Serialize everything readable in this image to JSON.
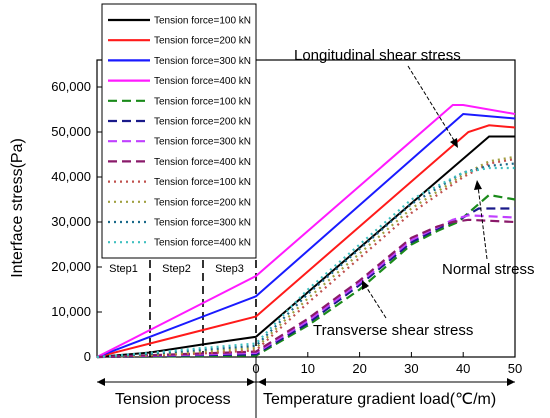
{
  "chart_data": {
    "type": "line",
    "title": "",
    "ylabel": "Interface stress(Pa)",
    "xlabel_tension": "Tension process",
    "xlabel_temperature": "Temperature gradient load(℃/m)",
    "ylim": [
      0,
      66000
    ],
    "x_temperature_range": [
      0,
      50
    ],
    "y_ticks": [
      0,
      10000,
      20000,
      30000,
      40000,
      50000,
      60000
    ],
    "y_tick_labels": [
      "0",
      "10,000",
      "20,000",
      "30,000",
      "40,000",
      "50,000",
      "60,000"
    ],
    "x_ticks": [
      0,
      10,
      20,
      30,
      40,
      50
    ],
    "x_tick_labels": [
      "0",
      "10",
      "20",
      "30",
      "40",
      "50"
    ],
    "steps": [
      "Step1",
      "Step2",
      "Step3"
    ],
    "annotations": {
      "longitudinal": "Longitudinal shear stress",
      "normal": "Normal stress",
      "transverse": "Transverse shear stress"
    },
    "legend_position": "upper-left",
    "grid": false,
    "series": [
      {
        "name": "Tension force=100 kN",
        "group": "Longitudinal shear stress",
        "color": "#000000",
        "dash": "solid",
        "points": [
          [
            -3,
            0
          ],
          [
            -2,
            1000
          ],
          [
            -1,
            2800
          ],
          [
            0,
            4500
          ],
          [
            45,
            49000
          ],
          [
            50,
            49000
          ]
        ]
      },
      {
        "name": "Tension force=200 kN",
        "group": "Longitudinal shear stress",
        "color": "#ff1a1a",
        "dash": "solid",
        "points": [
          [
            -3,
            0
          ],
          [
            -2,
            3000
          ],
          [
            -1,
            6000
          ],
          [
            0,
            9000
          ],
          [
            41,
            50000
          ],
          [
            45,
            51500
          ],
          [
            50,
            51000
          ]
        ]
      },
      {
        "name": "Tension force=300 kN",
        "group": "Longitudinal shear stress",
        "color": "#1a1aff",
        "dash": "solid",
        "points": [
          [
            -3,
            0
          ],
          [
            -2,
            4500
          ],
          [
            -1,
            9000
          ],
          [
            0,
            13500
          ],
          [
            40,
            54000
          ],
          [
            50,
            53000
          ]
        ]
      },
      {
        "name": "Tension force=400 kN",
        "group": "Longitudinal shear stress",
        "color": "#ff1aff",
        "dash": "solid",
        "points": [
          [
            -3,
            0
          ],
          [
            -2,
            6000
          ],
          [
            -1,
            12000
          ],
          [
            0,
            18000
          ],
          [
            38,
            56000
          ],
          [
            40,
            56000
          ],
          [
            50,
            54000
          ]
        ]
      },
      {
        "name": "Tension force=100 kN",
        "group": "Transverse shear stress",
        "color": "#1a8a1a",
        "dash": "longdash",
        "points": [
          [
            -3,
            0
          ],
          [
            -2,
            100
          ],
          [
            -1,
            200
          ],
          [
            0,
            300
          ],
          [
            10,
            7000
          ],
          [
            20,
            15000
          ],
          [
            30,
            25000
          ],
          [
            35,
            28000
          ],
          [
            39,
            30000
          ],
          [
            43,
            34000
          ],
          [
            45,
            36000
          ],
          [
            50,
            35000
          ]
        ]
      },
      {
        "name": "Tension force=200 kN",
        "group": "Transverse shear stress",
        "color": "#1a1a8a",
        "dash": "longdash",
        "points": [
          [
            -3,
            0
          ],
          [
            -2,
            200
          ],
          [
            -1,
            400
          ],
          [
            0,
            600
          ],
          [
            10,
            7500
          ],
          [
            20,
            16000
          ],
          [
            30,
            25500
          ],
          [
            35,
            28500
          ],
          [
            40,
            31000
          ],
          [
            43,
            33000
          ],
          [
            50,
            33000
          ]
        ]
      },
      {
        "name": "Tension force=300 kN",
        "group": "Transverse shear stress",
        "color": "#c040ff",
        "dash": "longdash",
        "points": [
          [
            -3,
            0
          ],
          [
            -2,
            300
          ],
          [
            -1,
            600
          ],
          [
            0,
            900
          ],
          [
            10,
            8000
          ],
          [
            20,
            16500
          ],
          [
            30,
            26000
          ],
          [
            35,
            28800
          ],
          [
            38,
            30500
          ],
          [
            41,
            31500
          ],
          [
            50,
            31000
          ]
        ]
      },
      {
        "name": "Tension force=400 kN",
        "group": "Transverse shear stress",
        "color": "#8a1a6a",
        "dash": "longdash",
        "points": [
          [
            -3,
            0
          ],
          [
            -2,
            400
          ],
          [
            -1,
            800
          ],
          [
            0,
            1200
          ],
          [
            10,
            8500
          ],
          [
            20,
            17000
          ],
          [
            30,
            26500
          ],
          [
            35,
            29000
          ],
          [
            38,
            30000
          ],
          [
            41,
            30500
          ],
          [
            50,
            30000
          ]
        ]
      },
      {
        "name": "Tension force=100 kN",
        "group": "Normal stress",
        "color": "#c0504d",
        "dash": "dot",
        "points": [
          [
            -3,
            0
          ],
          [
            -2,
            300
          ],
          [
            -1,
            800
          ],
          [
            0,
            1500
          ],
          [
            10,
            12000
          ],
          [
            20,
            22000
          ],
          [
            30,
            32000
          ],
          [
            40,
            40000
          ],
          [
            45,
            43000
          ],
          [
            50,
            44000
          ]
        ]
      },
      {
        "name": "Tension force=200 kN",
        "group": "Normal stress",
        "color": "#a0a040",
        "dash": "dot",
        "points": [
          [
            -3,
            0
          ],
          [
            -2,
            500
          ],
          [
            -1,
            1200
          ],
          [
            0,
            2000
          ],
          [
            10,
            13000
          ],
          [
            20,
            23000
          ],
          [
            30,
            33000
          ],
          [
            40,
            40500
          ],
          [
            45,
            43500
          ],
          [
            50,
            44500
          ]
        ]
      },
      {
        "name": "Tension force=300 kN",
        "group": "Normal stress",
        "color": "#1a6a8a",
        "dash": "dot",
        "points": [
          [
            -3,
            0
          ],
          [
            -2,
            700
          ],
          [
            -1,
            1600
          ],
          [
            0,
            2500
          ],
          [
            10,
            14000
          ],
          [
            20,
            24000
          ],
          [
            30,
            34000
          ],
          [
            40,
            41000
          ],
          [
            45,
            42500
          ],
          [
            50,
            43000
          ]
        ]
      },
      {
        "name": "Tension force=400 kN",
        "group": "Normal stress",
        "color": "#40c0c0",
        "dash": "dot",
        "points": [
          [
            -3,
            0
          ],
          [
            -2,
            900
          ],
          [
            -1,
            2000
          ],
          [
            0,
            3000
          ],
          [
            10,
            15000
          ],
          [
            20,
            25000
          ],
          [
            30,
            35000
          ],
          [
            40,
            41000
          ],
          [
            45,
            42000
          ],
          [
            50,
            42000
          ]
        ]
      }
    ]
  }
}
